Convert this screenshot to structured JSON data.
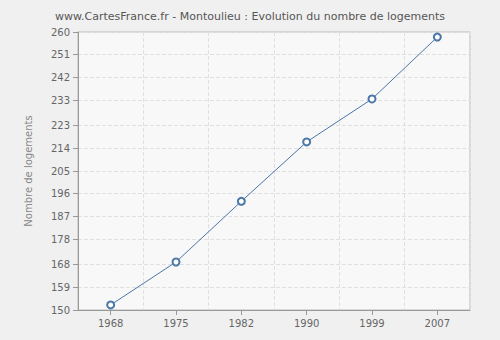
{
  "chart_data": {
    "type": "line",
    "title": "www.CartesFrance.fr - Montoulieu : Evolution du nombre de logements",
    "y_label": "Nombre de logements",
    "categories": [
      "1968",
      "1975",
      "1982",
      "1990",
      "1999",
      "2007"
    ],
    "values": [
      152,
      169,
      193,
      216.5,
      233.5,
      258
    ],
    "color": "#4a76a8",
    "marker": "circle",
    "ylim": [
      150,
      260
    ],
    "yticks": [
      150,
      159,
      168,
      178,
      187,
      196,
      205,
      214,
      223,
      233,
      242,
      251,
      260
    ],
    "grid": true
  }
}
